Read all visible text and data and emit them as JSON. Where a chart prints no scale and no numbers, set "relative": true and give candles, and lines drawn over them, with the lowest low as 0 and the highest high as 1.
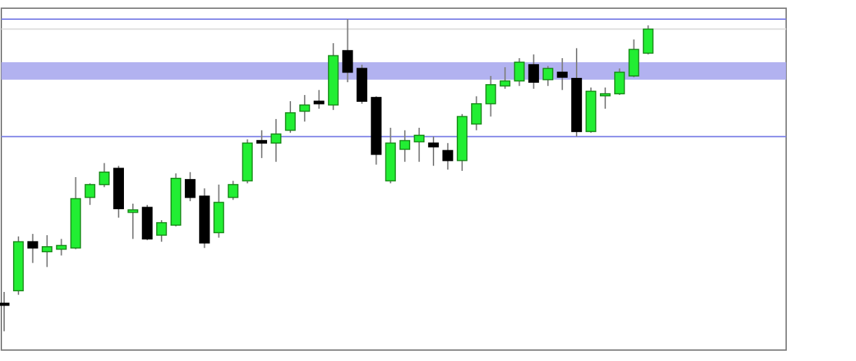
{
  "chart_data": {
    "type": "candlestick",
    "relative": true,
    "categories": [
      null,
      null,
      null,
      null,
      null,
      null,
      null,
      null,
      null,
      null,
      null,
      null,
      null,
      null,
      null,
      null,
      null,
      null,
      null,
      null,
      null,
      null,
      null,
      null,
      null,
      null,
      null,
      null,
      null,
      null,
      null,
      null,
      null,
      null,
      null,
      null,
      null,
      null,
      null,
      null,
      null,
      null,
      null,
      null,
      null,
      null
    ],
    "ohlc": [
      [
        0.09,
        0.126,
        0,
        0.085
      ],
      [
        0.13,
        0.304,
        0.117,
        0.287
      ],
      [
        0.287,
        0.312,
        0.219,
        0.267
      ],
      [
        0.255,
        0.308,
        0.206,
        0.271
      ],
      [
        0.263,
        0.296,
        0.243,
        0.275
      ],
      [
        0.267,
        0.494,
        0.263,
        0.425
      ],
      [
        0.429,
        0.474,
        0.405,
        0.47
      ],
      [
        0.47,
        0.539,
        0.462,
        0.51
      ],
      [
        0.522,
        0.53,
        0.364,
        0.393
      ],
      [
        0.381,
        0.409,
        0.296,
        0.389
      ],
      [
        0.397,
        0.405,
        0.292,
        0.296
      ],
      [
        0.308,
        0.356,
        0.287,
        0.348
      ],
      [
        0.34,
        0.506,
        0.336,
        0.49
      ],
      [
        0.486,
        0.51,
        0.417,
        0.429
      ],
      [
        0.433,
        0.458,
        0.267,
        0.283
      ],
      [
        0.316,
        0.47,
        0.3,
        0.413
      ],
      [
        0.429,
        0.482,
        0.421,
        0.47
      ],
      [
        0.482,
        0.615,
        0.474,
        0.603
      ],
      [
        0.611,
        0.644,
        0.555,
        0.603
      ],
      [
        0.603,
        0.68,
        0.543,
        0.632
      ],
      [
        0.644,
        0.737,
        0.636,
        0.7
      ],
      [
        0.705,
        0.757,
        0.672,
        0.725
      ],
      [
        0.737,
        0.773,
        0.713,
        0.729
      ],
      [
        0.725,
        0.923,
        0.709,
        0.883
      ],
      [
        0.899,
        1,
        0.798,
        0.83
      ],
      [
        0.842,
        0.854,
        0.729,
        0.737
      ],
      [
        0.749,
        0.753,
        0.534,
        0.567
      ],
      [
        0.482,
        0.652,
        0.474,
        0.603
      ],
      [
        0.583,
        0.644,
        0.543,
        0.611
      ],
      [
        0.607,
        0.652,
        0.543,
        0.628
      ],
      [
        0.603,
        0.624,
        0.53,
        0.591
      ],
      [
        0.579,
        0.603,
        0.518,
        0.547
      ],
      [
        0.547,
        0.696,
        0.514,
        0.688
      ],
      [
        0.664,
        0.753,
        0.644,
        0.729
      ],
      [
        0.729,
        0.818,
        0.688,
        0.79
      ],
      [
        0.786,
        0.846,
        0.777,
        0.802
      ],
      [
        0.802,
        0.875,
        0.786,
        0.862
      ],
      [
        0.854,
        0.887,
        0.777,
        0.798
      ],
      [
        0.806,
        0.85,
        0.786,
        0.842
      ],
      [
        0.83,
        0.875,
        0.773,
        0.814
      ],
      [
        0.81,
        0.907,
        0.624,
        0.64
      ],
      [
        0.64,
        0.781,
        0.636,
        0.769
      ],
      [
        0.761,
        0.781,
        0.713,
        0.761
      ],
      [
        0.761,
        0.842,
        0.757,
        0.83
      ],
      [
        0.818,
        0.935,
        0.814,
        0.903
      ],
      [
        0.891,
        0.98,
        0.887,
        0.968
      ]
    ],
    "colors": [
      "#000000",
      "#22ee33",
      "#000000",
      "#22ee33",
      "#22ee33",
      "#22ee33",
      "#22ee33",
      "#22ee33",
      "#000000",
      "#22ee33",
      "#000000",
      "#22ee33",
      "#22ee33",
      "#000000",
      "#000000",
      "#22ee33",
      "#22ee33",
      "#22ee33",
      "#000000",
      "#22ee33",
      "#22ee33",
      "#22ee33",
      "#000000",
      "#22ee33",
      "#000000",
      "#000000",
      "#000000",
      "#22ee33",
      "#22ee33",
      "#22ee33",
      "#000000",
      "#000000",
      "#22ee33",
      "#22ee33",
      "#22ee33",
      "#22ee33",
      "#22ee33",
      "#000000",
      "#22ee33",
      "#000000",
      "#000000",
      "#22ee33",
      "#22ee33",
      "#22ee33",
      "#22ee33",
      "#22ee33"
    ],
    "ref_lines": [
      {
        "axis": "y",
        "value": 1,
        "color": "#7c80e6"
      },
      {
        "axis": "y",
        "value": 0.624,
        "color": "#7c80e6"
      },
      {
        "axis": "y",
        "value": 0.968,
        "color": "#dddddd"
      }
    ],
    "bands": [
      {
        "axis": "y",
        "from": 0.806,
        "to": 0.862,
        "color": "#aaaaee"
      }
    ]
  }
}
